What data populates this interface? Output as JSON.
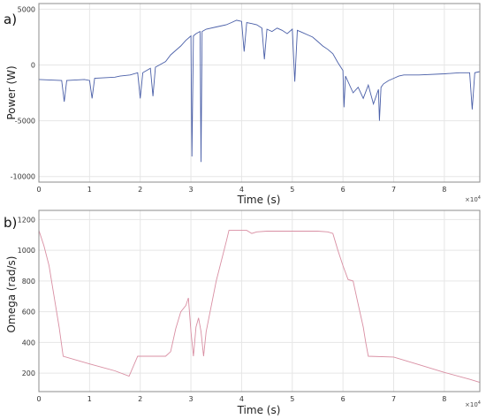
{
  "chart_data": [
    {
      "type": "line",
      "panel_label": "a)",
      "xlabel": "Time (s)",
      "ylabel": "Power (W)",
      "x_exponent_label": "×10",
      "x_exponent_power": "4",
      "xlim": [
        0,
        8.7
      ],
      "ylim": [
        -10500,
        5500
      ],
      "xticks": [
        0,
        1,
        2,
        3,
        4,
        5,
        6,
        7,
        8
      ],
      "yticks": [
        -10000,
        -5000,
        0,
        5000
      ],
      "ytick_labels": [
        "-10000",
        "-5000",
        "0",
        "5000"
      ],
      "grid": true,
      "color": "#4a5fa8",
      "x": [
        0,
        0.45,
        0.5,
        0.55,
        0.9,
        1.0,
        1.05,
        1.1,
        1.5,
        1.6,
        1.8,
        1.95,
        2.0,
        2.05,
        2.2,
        2.25,
        2.3,
        2.5,
        2.6,
        2.7,
        2.8,
        2.9,
        3.0,
        3.02,
        3.05,
        3.1,
        3.18,
        3.2,
        3.22,
        3.3,
        3.5,
        3.7,
        3.8,
        3.9,
        4.0,
        4.05,
        4.1,
        4.2,
        4.3,
        4.4,
        4.45,
        4.5,
        4.6,
        4.7,
        4.8,
        4.9,
        5.0,
        5.05,
        5.1,
        5.2,
        5.3,
        5.4,
        5.5,
        5.6,
        5.7,
        5.8,
        5.9,
        6.0,
        6.02,
        6.05,
        6.2,
        6.3,
        6.4,
        6.5,
        6.6,
        6.7,
        6.72,
        6.75,
        6.8,
        6.9,
        7.0,
        7.1,
        7.2,
        7.5,
        8.0,
        8.3,
        8.5,
        8.55,
        8.6,
        8.7
      ],
      "y": [
        -1300,
        -1400,
        -3300,
        -1400,
        -1300,
        -1400,
        -3000,
        -1200,
        -1100,
        -1000,
        -900,
        -700,
        -3000,
        -700,
        -300,
        -2800,
        -200,
        300,
        900,
        1300,
        1700,
        2200,
        2600,
        -8200,
        2600,
        2800,
        3000,
        -8700,
        3000,
        3200,
        3400,
        3600,
        3800,
        4000,
        3900,
        1200,
        3800,
        3700,
        3600,
        3300,
        500,
        3200,
        3000,
        3300,
        3100,
        2800,
        3200,
        -1500,
        3100,
        2900,
        2700,
        2500,
        2100,
        1700,
        1400,
        1000,
        200,
        -500,
        -3800,
        -1000,
        -2500,
        -2000,
        -3000,
        -1800,
        -3500,
        -2200,
        -5000,
        -2000,
        -1700,
        -1400,
        -1200,
        -1000,
        -900,
        -900,
        -800,
        -700,
        -700,
        -4000,
        -700,
        -600
      ]
    },
    {
      "type": "line",
      "panel_label": "b)",
      "xlabel": "Time (s)",
      "ylabel": "Omega (rad/s)",
      "x_exponent_label": "×10",
      "x_exponent_power": "4",
      "xlim": [
        0,
        8.7
      ],
      "ylim": [
        80,
        1260
      ],
      "xticks": [
        0,
        1,
        2,
        3,
        4,
        5,
        6,
        7,
        8
      ],
      "yticks": [
        200,
        400,
        600,
        800,
        1000,
        1200
      ],
      "ytick_labels": [
        "200",
        "400",
        "600",
        "800",
        "1000",
        "1200"
      ],
      "grid": true,
      "color": "#d98fa3",
      "x": [
        0,
        0.1,
        0.2,
        0.3,
        0.4,
        0.48,
        1.0,
        1.5,
        1.78,
        1.95,
        2.05,
        2.5,
        2.6,
        2.7,
        2.8,
        2.9,
        2.95,
        3.0,
        3.05,
        3.1,
        3.15,
        3.2,
        3.25,
        3.3,
        3.5,
        3.7,
        3.75,
        4.1,
        4.2,
        4.3,
        4.5,
        5.0,
        5.5,
        5.7,
        5.8,
        5.9,
        6.0,
        6.1,
        6.2,
        6.3,
        6.4,
        6.45,
        6.5,
        7.0,
        7.5,
        8.0,
        8.5,
        8.7
      ],
      "y": [
        1130,
        1030,
        900,
        700,
        500,
        310,
        260,
        215,
        180,
        310,
        310,
        310,
        340,
        490,
        600,
        640,
        690,
        470,
        310,
        500,
        560,
        470,
        310,
        470,
        800,
        1060,
        1130,
        1130,
        1110,
        1120,
        1125,
        1125,
        1125,
        1120,
        1110,
        1000,
        900,
        810,
        800,
        650,
        500,
        400,
        310,
        305,
        255,
        205,
        160,
        140
      ]
    }
  ]
}
